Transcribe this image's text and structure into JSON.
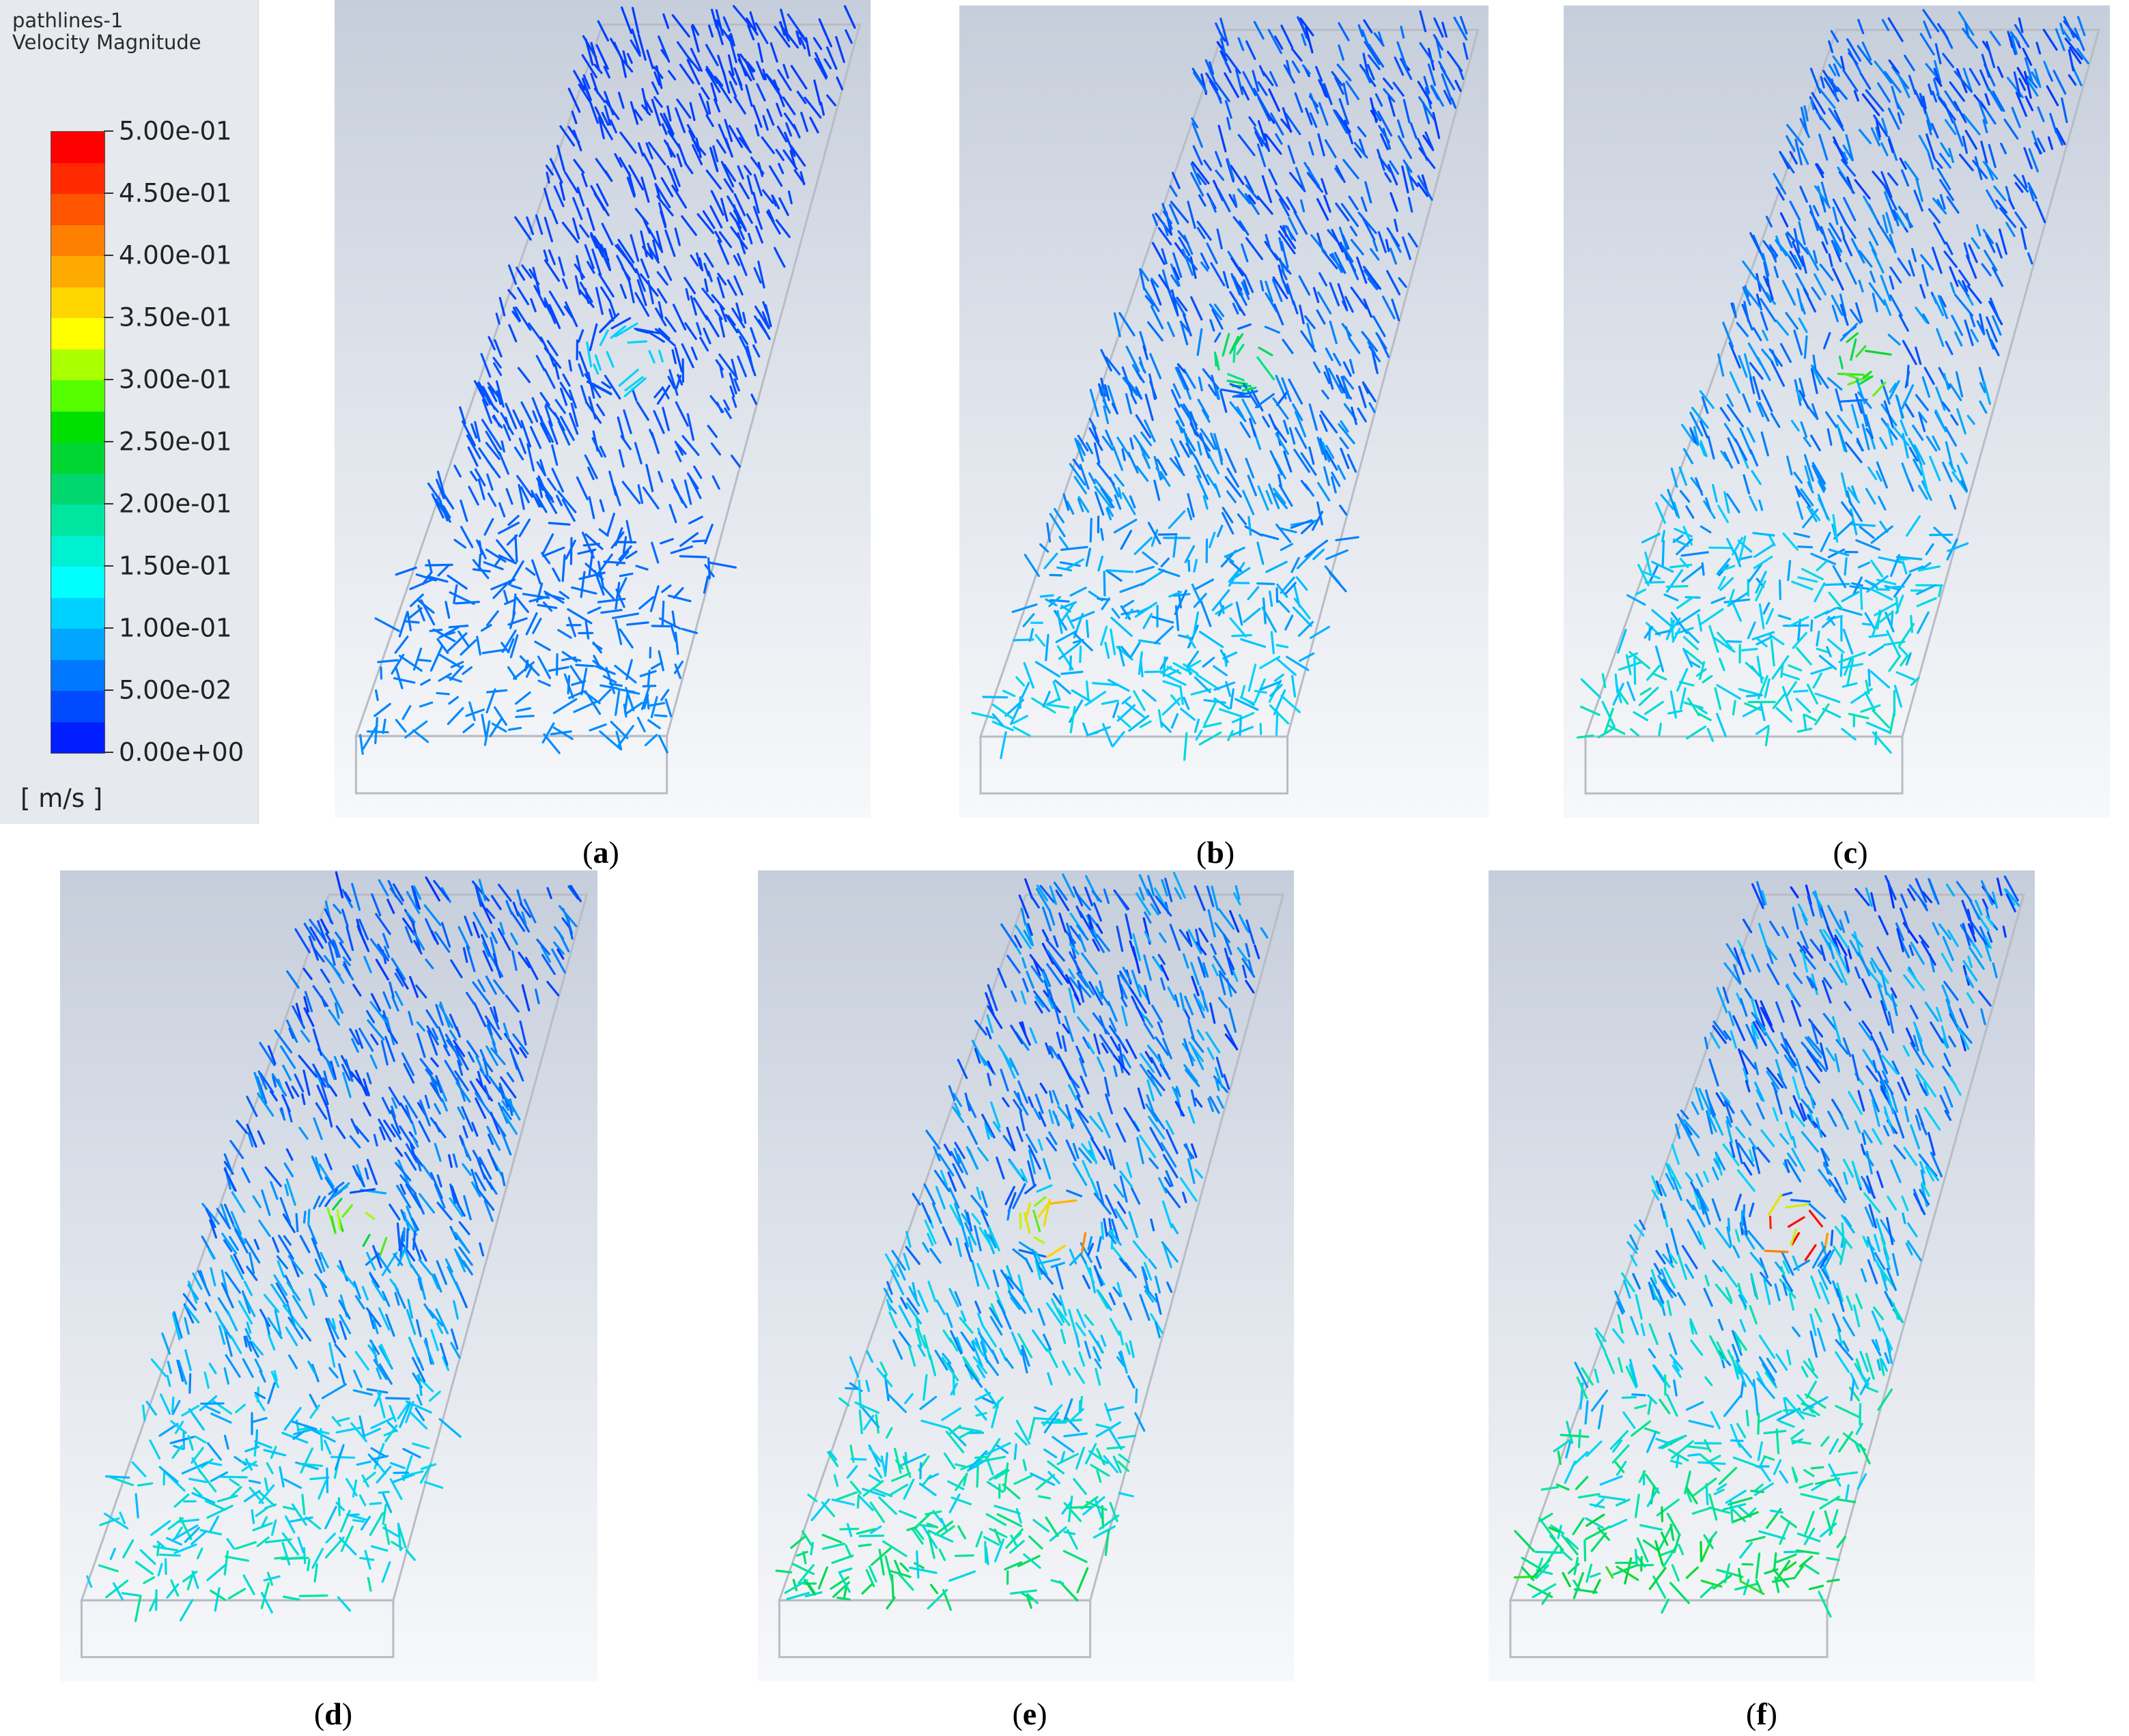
{
  "legend": {
    "title_line1": "pathlines-1",
    "title_line2": "Velocity Magnitude",
    "ticks": [
      "5.00e-01",
      "4.50e-01",
      "4.00e-01",
      "3.50e-01",
      "3.00e-01",
      "2.50e-01",
      "2.00e-01",
      "1.50e-01",
      "1.00e-01",
      "5.00e-02",
      "0.00e+00"
    ],
    "unit": "[ m/s ]",
    "colors": [
      "#ff0000",
      "#ff2a00",
      "#ff5500",
      "#ff8000",
      "#ffaa00",
      "#ffd500",
      "#ffff00",
      "#aaff00",
      "#55ff00",
      "#00e000",
      "#00d632",
      "#00d66e",
      "#00e6a0",
      "#00f0d2",
      "#00ffff",
      "#00d2ff",
      "#00a5ff",
      "#0078ff",
      "#004bff",
      "#001eff"
    ]
  },
  "panels": [
    {
      "label": "a",
      "intensity": 0.05
    },
    {
      "label": "b",
      "intensity": 0.35
    },
    {
      "label": "c",
      "intensity": 0.5
    },
    {
      "label": "d",
      "intensity": 0.55
    },
    {
      "label": "e",
      "intensity": 0.75
    },
    {
      "label": "f",
      "intensity": 0.9
    }
  ]
}
